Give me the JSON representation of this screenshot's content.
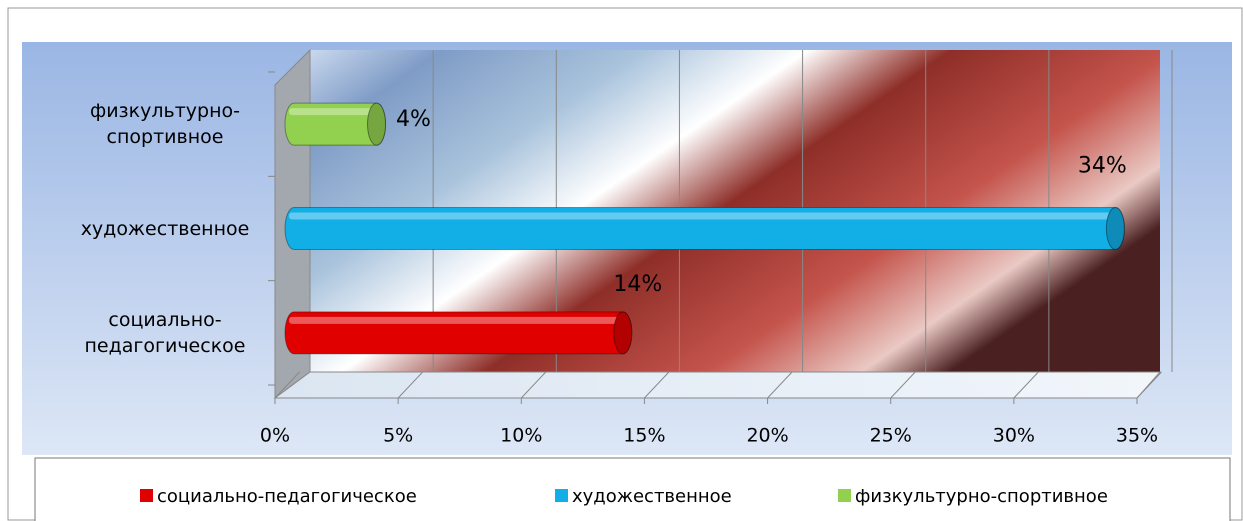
{
  "chart_data": {
    "type": "bar3d_horizontal",
    "categories": [
      "социально-педагогическое",
      "художественное",
      "физкультурно-спортивное"
    ],
    "values": [
      14,
      34,
      4
    ],
    "value_labels": [
      "14%",
      "34%",
      "4%"
    ],
    "colors": [
      "#e00000",
      "#12aee6",
      "#92d050"
    ],
    "xlim": [
      0,
      35
    ],
    "xticks": [
      {
        "value": 0,
        "label": "0%"
      },
      {
        "value": 5,
        "label": "5%"
      },
      {
        "value": 10,
        "label": "10%"
      },
      {
        "value": 15,
        "label": "15%"
      },
      {
        "value": 20,
        "label": "20%"
      },
      {
        "value": 25,
        "label": "25%"
      },
      {
        "value": 30,
        "label": "30%"
      },
      {
        "value": 35,
        "label": "35%"
      }
    ],
    "grid": true,
    "legend": "bottom"
  }
}
